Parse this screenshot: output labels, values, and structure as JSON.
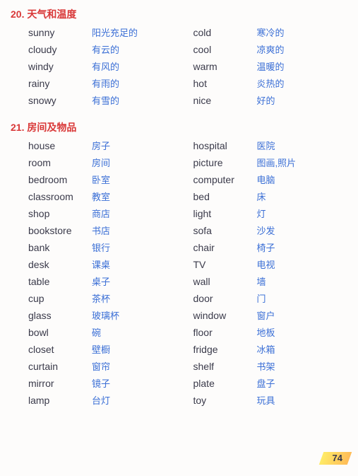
{
  "sections": [
    {
      "title": "20. 天气和温度",
      "left": [
        {
          "eng": "sunny",
          "chn": "阳光充足的"
        },
        {
          "eng": "cloudy",
          "chn": "有云的"
        },
        {
          "eng": "windy",
          "chn": "有风的"
        },
        {
          "eng": "rainy",
          "chn": "有雨的"
        },
        {
          "eng": "snowy",
          "chn": "有雪的"
        }
      ],
      "right": [
        {
          "eng": "cold",
          "chn": "寒冷的"
        },
        {
          "eng": "cool",
          "chn": "凉爽的"
        },
        {
          "eng": "warm",
          "chn": "温暖的"
        },
        {
          "eng": "hot",
          "chn": "炎热的"
        },
        {
          "eng": "nice",
          "chn": "好的"
        }
      ]
    },
    {
      "title": "21. 房间及物品",
      "left": [
        {
          "eng": "house",
          "chn": "房子"
        },
        {
          "eng": "room",
          "chn": "房间"
        },
        {
          "eng": "bedroom",
          "chn": "卧室"
        },
        {
          "eng": "classroom",
          "chn": "教室"
        },
        {
          "eng": "shop",
          "chn": "商店"
        },
        {
          "eng": "bookstore",
          "chn": "书店"
        },
        {
          "eng": "bank",
          "chn": "银行"
        },
        {
          "eng": "desk",
          "chn": "课桌"
        },
        {
          "eng": "table",
          "chn": "桌子"
        },
        {
          "eng": "cup",
          "chn": "茶杯"
        },
        {
          "eng": "glass",
          "chn": "玻璃杯"
        },
        {
          "eng": "bowl",
          "chn": "碗"
        },
        {
          "eng": "closet",
          "chn": "壁橱"
        },
        {
          "eng": "curtain",
          "chn": "窗帘"
        },
        {
          "eng": "mirror",
          "chn": "镜子"
        },
        {
          "eng": "lamp",
          "chn": "台灯"
        }
      ],
      "right": [
        {
          "eng": "hospital",
          "chn": "医院"
        },
        {
          "eng": "picture",
          "chn": "图画,照片"
        },
        {
          "eng": "computer",
          "chn": "电脑"
        },
        {
          "eng": "bed",
          "chn": "床"
        },
        {
          "eng": "light",
          "chn": "灯"
        },
        {
          "eng": "sofa",
          "chn": "沙发"
        },
        {
          "eng": "chair",
          "chn": "椅子"
        },
        {
          "eng": "TV",
          "chn": "电视"
        },
        {
          "eng": "wall",
          "chn": "墙"
        },
        {
          "eng": "door",
          "chn": "门"
        },
        {
          "eng": "window",
          "chn": "窗户"
        },
        {
          "eng": "floor",
          "chn": "地板"
        },
        {
          "eng": "fridge",
          "chn": "冰箱"
        },
        {
          "eng": "shelf",
          "chn": "书架"
        },
        {
          "eng": "plate",
          "chn": "盘子"
        },
        {
          "eng": "toy",
          "chn": "玩具"
        }
      ]
    }
  ],
  "page_number": "74"
}
